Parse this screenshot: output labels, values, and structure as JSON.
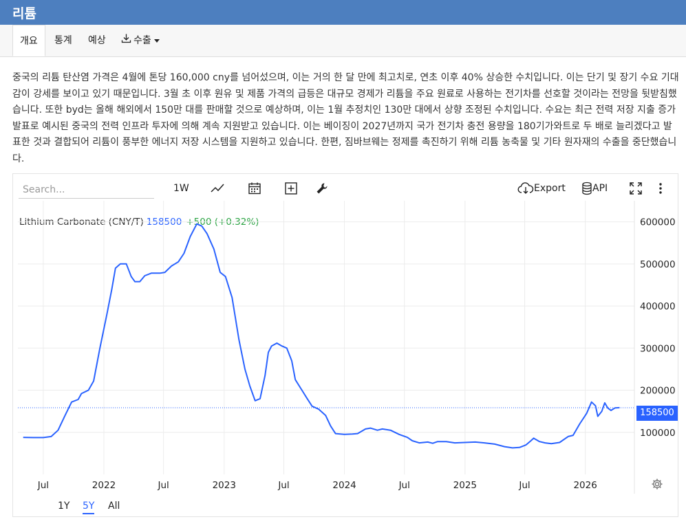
{
  "header": {
    "title": "리튬"
  },
  "tabs": [
    {
      "label": "개요"
    },
    {
      "label": "통계"
    },
    {
      "label": "예상"
    },
    {
      "label": "수출"
    }
  ],
  "description": "중국의 리튬 탄산염 가격은 4월에 톤당 160,000 cny를 넘어섰으며, 이는 거의 한 달 만에 최고치로, 연초 이후 40% 상승한 수치입니다. 이는 단기 및 장기 수요 기대감이 강세를 보이고 있기 때문입니다. 3월 초 이후 원유 및 제품 가격의 급등은 대규모 경제가 리튬을 주요 원료로 사용하는 전기차를 선호할 것이라는 전망을 뒷받침했습니다. 또한 byd는 올해 해외에서 150만 대를 판매할 것으로 예상하며, 이는 1월 추정치인 130만 대에서 상향 조정된 수치입니다. 수요는 최근 전력 저장 지출 증가 발표로 예시된 중국의 전력 인프라 투자에 의해 계속 지원받고 있습니다. 이는 베이징이 2027년까지 국가 전기차 충전 용량을 180기가와트로 두 배로 늘리겠다고 발표한 것과 결합되어 리튬이 풍부한 에너지 저장 시스템을 지원하고 있습니다. 한편, 짐바브웨는 정제를 촉진하기 위해 리튬 농축물 및 기타 원자재의 수출을 중단했습니다.",
  "toolbar": {
    "search_placeholder": "Search...",
    "interval": "1W",
    "export_label": "Export",
    "api_label": "API"
  },
  "legend": {
    "name": "Lithium Carbonate (CNY/T)",
    "value": "158500",
    "change": "+500 (+0.32%)"
  },
  "price_tag": "158500",
  "periods": [
    {
      "label": "1Y"
    },
    {
      "label": "5Y",
      "active": true
    },
    {
      "label": "All"
    }
  ],
  "colors": {
    "line": "#2962ff",
    "positive": "#2aa342",
    "header": "#4d7fbf"
  },
  "chart_data": {
    "type": "line",
    "series": [
      {
        "name": "Lithium Carbonate (CNY/T)",
        "points": [
          [
            "2021-05-01",
            88000
          ],
          [
            "2021-06-01",
            87500
          ],
          [
            "2021-07-01",
            87500
          ],
          [
            "2021-07-25",
            90000
          ],
          [
            "2021-08-15",
            105000
          ],
          [
            "2021-09-05",
            140000
          ],
          [
            "2021-09-25",
            172000
          ],
          [
            "2021-10-15",
            178000
          ],
          [
            "2021-10-25",
            192000
          ],
          [
            "2021-11-15",
            200000
          ],
          [
            "2021-12-01",
            222000
          ],
          [
            "2021-12-20",
            300000
          ],
          [
            "2022-01-10",
            380000
          ],
          [
            "2022-01-25",
            440000
          ],
          [
            "2022-02-05",
            490000
          ],
          [
            "2022-02-20",
            500000
          ],
          [
            "2022-03-10",
            500000
          ],
          [
            "2022-03-25",
            470000
          ],
          [
            "2022-04-05",
            458000
          ],
          [
            "2022-04-20",
            458000
          ],
          [
            "2022-05-05",
            472000
          ],
          [
            "2022-05-25",
            478000
          ],
          [
            "2022-06-20",
            478000
          ],
          [
            "2022-07-05",
            480000
          ],
          [
            "2022-07-25",
            495000
          ],
          [
            "2022-08-15",
            505000
          ],
          [
            "2022-09-01",
            525000
          ],
          [
            "2022-09-20",
            565000
          ],
          [
            "2022-10-10",
            595000
          ],
          [
            "2022-10-25",
            590000
          ],
          [
            "2022-11-10",
            572000
          ],
          [
            "2022-12-01",
            535000
          ],
          [
            "2022-12-20",
            480000
          ],
          [
            "2023-01-05",
            470000
          ],
          [
            "2023-01-25",
            420000
          ],
          [
            "2023-02-15",
            320000
          ],
          [
            "2023-03-05",
            250000
          ],
          [
            "2023-03-20",
            210000
          ],
          [
            "2023-04-05",
            175000
          ],
          [
            "2023-04-20",
            180000
          ],
          [
            "2023-05-05",
            235000
          ],
          [
            "2023-05-15",
            290000
          ],
          [
            "2023-05-25",
            305000
          ],
          [
            "2023-06-10",
            312000
          ],
          [
            "2023-06-25",
            305000
          ],
          [
            "2023-07-10",
            300000
          ],
          [
            "2023-07-25",
            270000
          ],
          [
            "2023-08-05",
            225000
          ],
          [
            "2023-08-25",
            200000
          ],
          [
            "2023-09-10",
            180000
          ],
          [
            "2023-09-25",
            162000
          ],
          [
            "2023-10-15",
            155000
          ],
          [
            "2023-11-05",
            140000
          ],
          [
            "2023-11-20",
            115000
          ],
          [
            "2023-12-05",
            97000
          ],
          [
            "2024-01-01",
            95000
          ],
          [
            "2024-01-25",
            96000
          ],
          [
            "2024-02-10",
            97000
          ],
          [
            "2024-03-05",
            108000
          ],
          [
            "2024-03-20",
            110000
          ],
          [
            "2024-04-10",
            105000
          ],
          [
            "2024-04-25",
            108000
          ],
          [
            "2024-05-20",
            105000
          ],
          [
            "2024-06-15",
            95000
          ],
          [
            "2024-07-10",
            88000
          ],
          [
            "2024-07-25",
            80000
          ],
          [
            "2024-08-15",
            75000
          ],
          [
            "2024-09-10",
            77000
          ],
          [
            "2024-09-25",
            74000
          ],
          [
            "2024-10-10",
            78000
          ],
          [
            "2024-11-05",
            78000
          ],
          [
            "2024-12-01",
            75000
          ],
          [
            "2025-01-01",
            76000
          ],
          [
            "2025-02-01",
            77000
          ],
          [
            "2025-03-01",
            75000
          ],
          [
            "2025-04-01",
            72000
          ],
          [
            "2025-05-01",
            66000
          ],
          [
            "2025-05-25",
            63000
          ],
          [
            "2025-06-15",
            64000
          ],
          [
            "2025-07-05",
            70000
          ],
          [
            "2025-07-20",
            80000
          ],
          [
            "2025-07-28",
            86000
          ],
          [
            "2025-08-15",
            78000
          ],
          [
            "2025-09-01",
            75000
          ],
          [
            "2025-09-20",
            73000
          ],
          [
            "2025-10-15",
            76000
          ],
          [
            "2025-11-10",
            90000
          ],
          [
            "2025-11-25",
            93000
          ],
          [
            "2025-12-15",
            120000
          ],
          [
            "2026-01-05",
            145000
          ],
          [
            "2026-01-20",
            172000
          ],
          [
            "2026-02-01",
            163000
          ],
          [
            "2026-02-08",
            138000
          ],
          [
            "2026-02-20",
            150000
          ],
          [
            "2026-03-01",
            170000
          ],
          [
            "2026-03-10",
            158000
          ],
          [
            "2026-03-20",
            152000
          ],
          [
            "2026-04-01",
            158000
          ],
          [
            "2026-04-15",
            158500
          ]
        ]
      }
    ],
    "last_value": 158500,
    "x_ticks": [
      {
        "date": "2021-07-01",
        "label": "Jul"
      },
      {
        "date": "2022-01-01",
        "label": "2022"
      },
      {
        "date": "2022-07-01",
        "label": "Jul"
      },
      {
        "date": "2023-01-01",
        "label": "2023"
      },
      {
        "date": "2023-07-01",
        "label": "Jul"
      },
      {
        "date": "2024-01-01",
        "label": "2024"
      },
      {
        "date": "2024-07-01",
        "label": "Jul"
      },
      {
        "date": "2025-01-01",
        "label": "2025"
      },
      {
        "date": "2025-07-01",
        "label": "Jul"
      },
      {
        "date": "2026-01-01",
        "label": "2026"
      }
    ],
    "y_ticks": [
      100000,
      200000,
      300000,
      400000,
      500000,
      600000
    ],
    "xlim": [
      "2021-04-15",
      "2026-05-30"
    ],
    "ylim": [
      0,
      650000
    ],
    "grid": true,
    "y_axis_side": "right"
  }
}
